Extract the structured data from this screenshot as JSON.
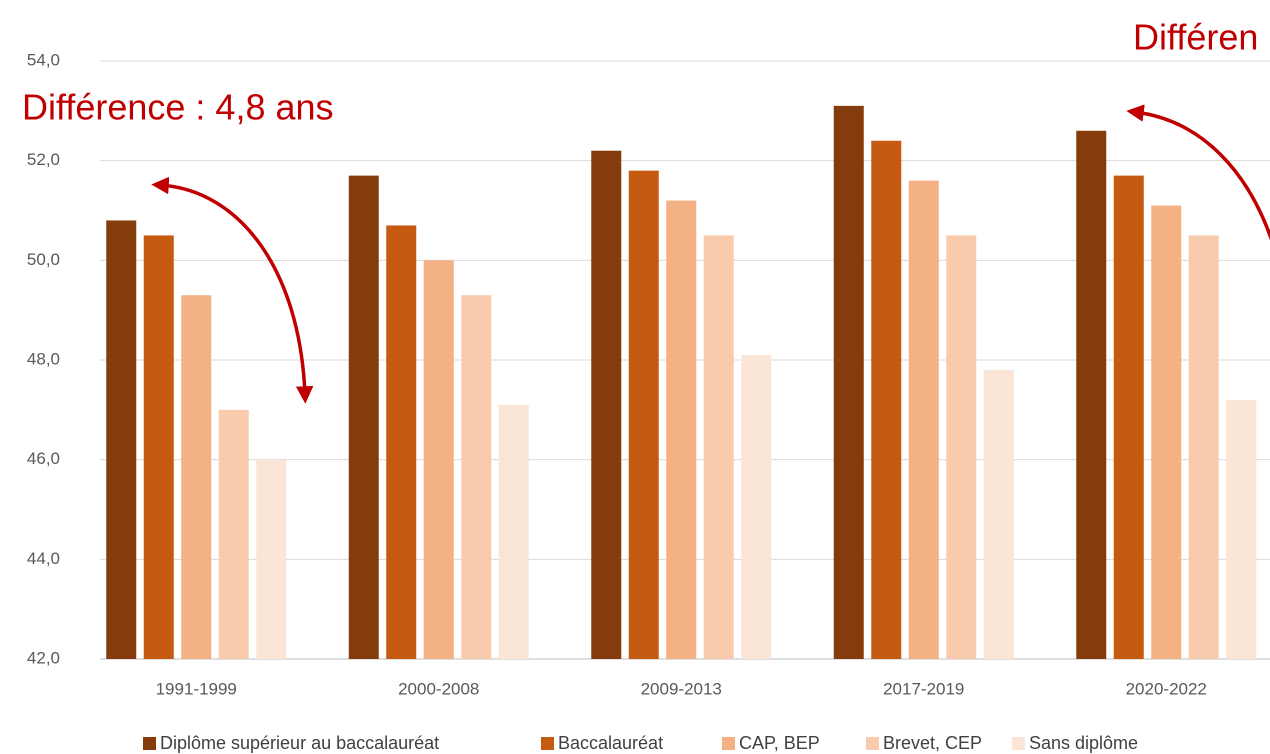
{
  "chart_data": {
    "type": "bar",
    "categories": [
      "1991-1999",
      "2000-2008",
      "2009-2013",
      "2017-2019",
      "2020-2022"
    ],
    "series": [
      {
        "name": "Diplôme supérieur au baccalauréat",
        "color": "#843c0c",
        "values": [
          50.8,
          51.7,
          52.2,
          53.1,
          52.6
        ]
      },
      {
        "name": "Baccalauréat",
        "color": "#c55a11",
        "values": [
          50.5,
          50.7,
          51.8,
          52.4,
          51.7
        ]
      },
      {
        "name": "CAP, BEP",
        "color": "#f4b183",
        "values": [
          49.3,
          50.0,
          51.2,
          51.6,
          51.1
        ]
      },
      {
        "name": "Brevet, CEP",
        "color": "#f8cbad",
        "values": [
          47.0,
          49.3,
          50.5,
          50.5,
          50.5
        ]
      },
      {
        "name": "Sans diplôme",
        "color": "#fbe5d6",
        "values": [
          46.0,
          47.1,
          48.1,
          47.8,
          47.2
        ]
      }
    ],
    "ylim": [
      42,
      54
    ],
    "yticks": [
      {
        "value": 42,
        "label": "42,0"
      },
      {
        "value": 44,
        "label": "44,0"
      },
      {
        "value": 46,
        "label": "46,0"
      },
      {
        "value": 48,
        "label": "48,0"
      },
      {
        "value": 50,
        "label": "50,0"
      },
      {
        "value": 52,
        "label": "52,0"
      },
      {
        "value": 54,
        "label": "54,0"
      }
    ],
    "grid": true,
    "legend": "bottom",
    "annotations": [
      "Différence : 4,8 ans",
      "Différen"
    ]
  }
}
